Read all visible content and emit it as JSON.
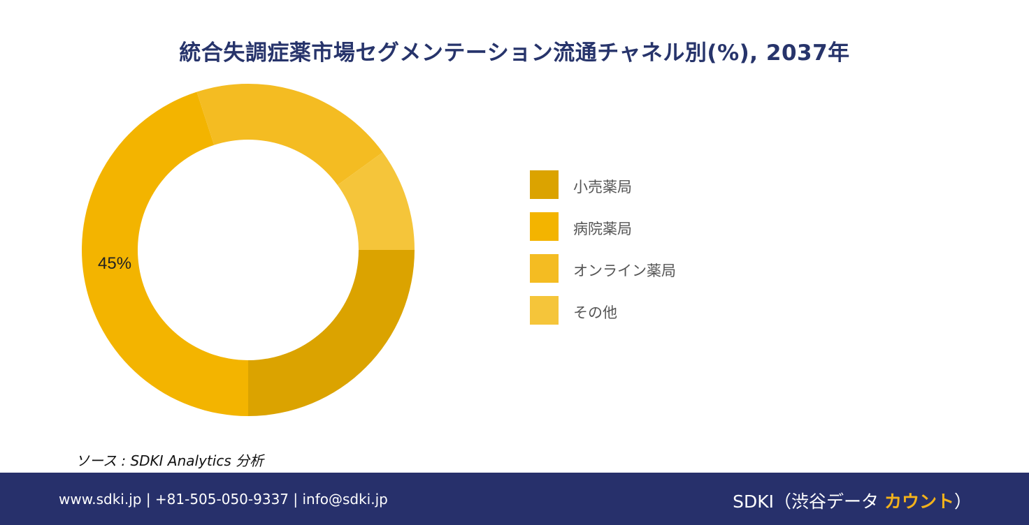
{
  "title": "統合失調症薬市場セグメンテーション流通チャネル別(%), 2037年",
  "chart_data": {
    "type": "pie",
    "donut": true,
    "categories": [
      "小売薬局",
      "病院薬局",
      "オンライン薬局",
      "その他"
    ],
    "values": [
      25,
      45,
      20,
      10
    ],
    "colors": [
      "#dba300",
      "#f3b400",
      "#f4bc22",
      "#f5c53a"
    ],
    "data_labels": [
      {
        "category": "病院薬局",
        "text": "45%"
      }
    ],
    "legend_position": "right"
  },
  "source_text": "ソース : SDKI Analytics  分析",
  "footer": {
    "contact": "www.sdki.jp  | +81-505-050-9337 | info@sdki.jp",
    "brand_prefix": "SDKI（渋谷データ ",
    "brand_accent": "カウント",
    "brand_suffix": "）",
    "accent_color": "#f3b21b"
  }
}
